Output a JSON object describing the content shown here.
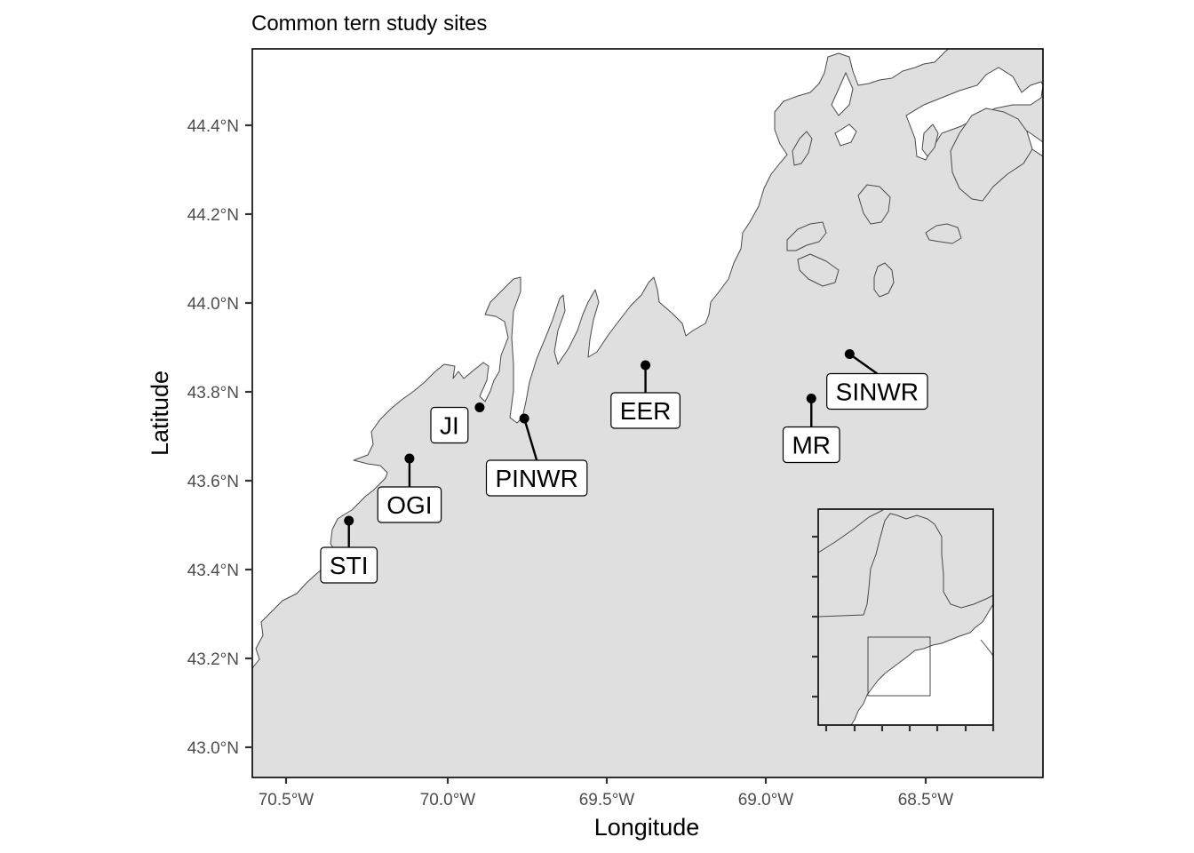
{
  "title": "Common tern study sites",
  "xlabel": "Longitude",
  "ylabel": "Latitude",
  "colors": {
    "land": "#dfdfdf",
    "water": "#ffffff",
    "coastline": "#4a4a4a",
    "points": "#000000"
  },
  "x_ticks": [
    "70.5°W",
    "70.0°W",
    "69.5°W",
    "69.0°W",
    "68.5°W"
  ],
  "y_ticks": [
    "44.4°N",
    "44.2°N",
    "44.0°N",
    "43.8°N",
    "43.6°N",
    "43.4°N",
    "43.2°N",
    "43.0°N"
  ],
  "sites": [
    {
      "code": "STI",
      "lon": -70.31,
      "lat": 43.51
    },
    {
      "code": "OGI",
      "lon": -70.12,
      "lat": 43.65
    },
    {
      "code": "JI",
      "lon": -69.9,
      "lat": 43.765
    },
    {
      "code": "PINWR",
      "lon": -69.76,
      "lat": 43.74
    },
    {
      "code": "EER",
      "lon": -69.38,
      "lat": 43.86
    },
    {
      "code": "MR",
      "lon": -68.86,
      "lat": 43.785
    },
    {
      "code": "SINWR",
      "lon": -68.74,
      "lat": 43.885
    }
  ],
  "inset": {
    "description_hidden": true
  }
}
